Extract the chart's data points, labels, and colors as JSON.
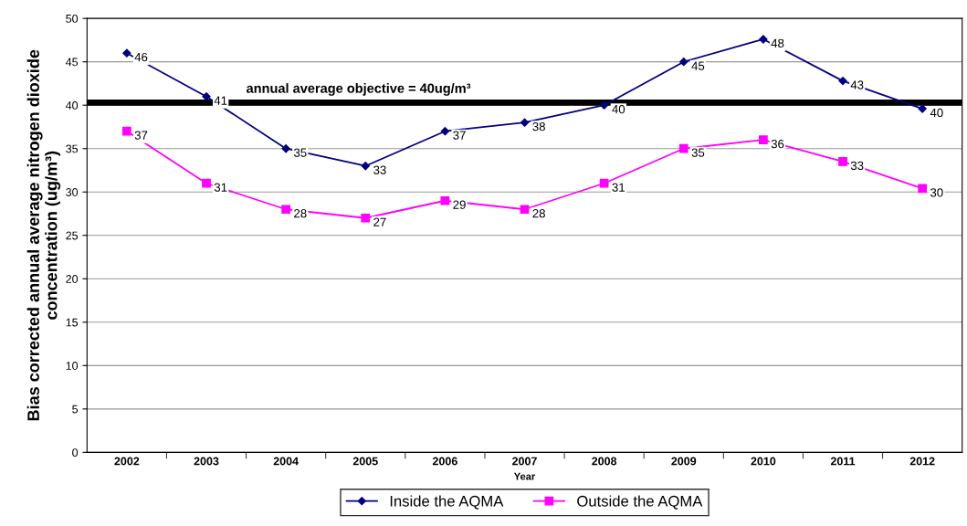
{
  "chart_data": {
    "type": "line",
    "xlabel": "Year",
    "ylabel": "Bias corrected annual average nitrogen dioxide\nconcentration (ug/m³)",
    "categories": [
      "2002",
      "2003",
      "2004",
      "2005",
      "2006",
      "2007",
      "2008",
      "2009",
      "2010",
      "2011",
      "2012"
    ],
    "series": [
      {
        "name": "Inside the AQMA",
        "color": "#000080",
        "marker": "diamond",
        "values": [
          46,
          41,
          35,
          33,
          37,
          38,
          40,
          45,
          47.6,
          42.8,
          39.6
        ],
        "value_labels": [
          "46",
          "41",
          "35",
          "33",
          "37",
          "38",
          "40",
          "45",
          "48",
          "43",
          "40"
        ]
      },
      {
        "name": "Outside the AQMA",
        "color": "#ff00ff",
        "marker": "square",
        "values": [
          37,
          31,
          28,
          27,
          29,
          28,
          31,
          35,
          36,
          33.5,
          30.4
        ],
        "value_labels": [
          "37",
          "31",
          "28",
          "27",
          "29",
          "28",
          "31",
          "35",
          "36",
          "33",
          "30"
        ]
      }
    ],
    "ylim": [
      0,
      50
    ],
    "yticks": [
      0,
      5,
      10,
      15,
      20,
      25,
      30,
      35,
      40,
      45,
      50
    ],
    "grid": "y",
    "legend": "bottom",
    "ref_lines": [
      {
        "axis": "y",
        "value": 40.3,
        "label": "annual average objective = 40ug/m³",
        "color": "#000000",
        "line_style": "solid"
      }
    ]
  }
}
